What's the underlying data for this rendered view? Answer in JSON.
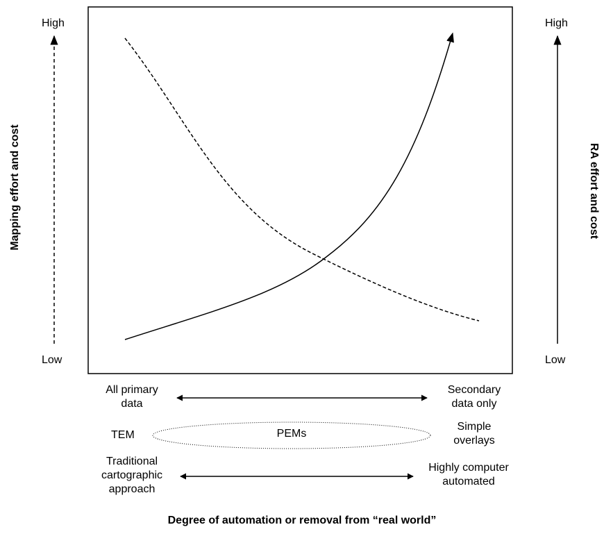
{
  "axes": {
    "left": {
      "label": "Mapping effort and cost",
      "high": "High",
      "low": "Low"
    },
    "right": {
      "label": "RA effort and cost",
      "high": "High",
      "low": "Low"
    },
    "bottom": {
      "label": "Degree of automation or removal from “real world”"
    }
  },
  "curves": [
    {
      "name": "mapping-effort-curve",
      "style": "dashed",
      "trend": "decreasing"
    },
    {
      "name": "ra-effort-curve",
      "style": "solid",
      "trend": "increasing"
    }
  ],
  "scales": [
    {
      "left": [
        "All primary",
        "data"
      ],
      "right": [
        "Secondary",
        "data only"
      ]
    },
    {
      "left": [
        "TEM"
      ],
      "middle": "PEMs",
      "right": [
        "Simple",
        "overlays"
      ]
    },
    {
      "left": [
        "Traditional",
        "cartographic",
        "approach"
      ],
      "right": [
        "Highly computer",
        "automated"
      ]
    }
  ]
}
